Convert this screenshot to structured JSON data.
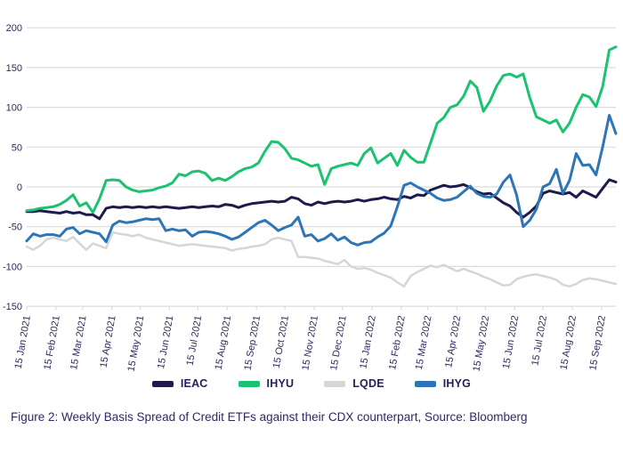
{
  "figure": {
    "caption": "Figure 2: Weekly Basis Spread of Credit ETFs against their CDX counterpart, Source: Bloomberg"
  },
  "legend": {
    "items": [
      {
        "label": "IEAC",
        "color": "#1c1b4b"
      },
      {
        "label": "IHYU",
        "color": "#1ac36f"
      },
      {
        "label": "LQDE",
        "color": "#d6d6d6"
      },
      {
        "label": "IHYG",
        "color": "#2e75b6"
      }
    ]
  },
  "colors": {
    "grid": "#dcdcdc",
    "axis_text": "#2d2a62",
    "background": "#ffffff"
  },
  "chart_data": {
    "type": "line",
    "title": "",
    "xlabel": "",
    "ylabel": "",
    "x_start": "15 Jan 2021",
    "x_end": "30 Sep 2022",
    "x_interval": "weekly",
    "ylim": [
      -150,
      200
    ],
    "yticks": [
      200,
      150,
      100,
      50,
      0,
      -50,
      -100,
      -150
    ],
    "grid": "horizontal",
    "legend_position": "bottom-center",
    "xticks": [
      {
        "label": "15 Jan 2021",
        "week": 0
      },
      {
        "label": "15 Feb 2021",
        "week": 4.43
      },
      {
        "label": "15 Mar 2021",
        "week": 8.43
      },
      {
        "label": "15 Apr 2021",
        "week": 12.86
      },
      {
        "label": "15 May 2021",
        "week": 17.14
      },
      {
        "label": "15 Jun 2021",
        "week": 21.57
      },
      {
        "label": "15 Jul 2021",
        "week": 25.86
      },
      {
        "label": "15 Aug 2021",
        "week": 30.29
      },
      {
        "label": "15 Sep 2021",
        "week": 34.71
      },
      {
        "label": "15 Oct 2021",
        "week": 39.0
      },
      {
        "label": "15 Nov 2021",
        "week": 43.43
      },
      {
        "label": "15 Dec 2021",
        "week": 47.71
      },
      {
        "label": "15 Jan 2022",
        "week": 52.14
      },
      {
        "label": "15 Feb 2022",
        "week": 56.57
      },
      {
        "label": "15 Mar 2022",
        "week": 60.57
      },
      {
        "label": "15 Apr 2022",
        "week": 65.0
      },
      {
        "label": "15 May 2022",
        "week": 69.29
      },
      {
        "label": "15 Jun 2022",
        "week": 73.71
      },
      {
        "label": "15 Jul 2022",
        "week": 78.0
      },
      {
        "label": "15 Aug 2022",
        "week": 82.43
      },
      {
        "label": "15 Sep 2022",
        "week": 86.86
      }
    ],
    "draw_order": [
      "LQDE",
      "IEAC",
      "IHYU",
      "IHYG"
    ],
    "series": [
      {
        "name": "IEAC",
        "color": "#1c1b4b",
        "width": 3,
        "values": [
          -31,
          -31,
          -30,
          -31,
          -32,
          -33,
          -31,
          -33,
          -32,
          -35,
          -35,
          -40,
          -27,
          -25,
          -26,
          -25,
          -26,
          -25,
          -26,
          -25,
          -26,
          -25,
          -26,
          -27,
          -26,
          -25,
          -26,
          -25,
          -24,
          -25,
          -22,
          -23,
          -26,
          -23,
          -21,
          -20,
          -19,
          -18,
          -19,
          -18,
          -13,
          -15,
          -21,
          -23,
          -19,
          -21,
          -19,
          -18,
          -19,
          -18,
          -16,
          -18,
          -16,
          -15,
          -13,
          -15,
          -16,
          -12,
          -14,
          -10,
          -11,
          -4,
          -1,
          2,
          0,
          1,
          3,
          -1,
          -6,
          -9,
          -8,
          -14,
          -20,
          -24,
          -32,
          -38,
          -32,
          -24,
          -8,
          -5,
          -7,
          -9,
          -7,
          -13,
          -5,
          -9,
          -13,
          -2,
          9,
          6
        ]
      },
      {
        "name": "IHYU",
        "color": "#1ac36f",
        "width": 3,
        "values": [
          -30,
          -29,
          -27,
          -26,
          -25,
          -22,
          -17,
          -10,
          -24,
          -20,
          -32,
          -15,
          8,
          9,
          8,
          0,
          -4,
          -6,
          -5,
          -4,
          -1,
          1,
          5,
          16,
          14,
          19,
          20,
          17,
          8,
          11,
          8,
          13,
          19,
          23,
          25,
          30,
          45,
          57,
          56,
          48,
          36,
          34,
          30,
          26,
          28,
          3,
          23,
          26,
          28,
          30,
          27,
          42,
          49,
          30,
          36,
          42,
          27,
          46,
          37,
          31,
          31,
          55,
          80,
          87,
          100,
          103,
          114,
          133,
          125,
          95,
          108,
          127,
          140,
          142,
          138,
          142,
          112,
          88,
          84,
          80,
          84,
          69,
          80,
          100,
          116,
          113,
          101,
          126,
          172,
          176
        ]
      },
      {
        "name": "LQDE",
        "color": "#d6d6d6",
        "width": 2.5,
        "values": [
          -75,
          -79,
          -74,
          -66,
          -64,
          -66,
          -68,
          -63,
          -71,
          -79,
          -71,
          -74,
          -77,
          -57,
          -59,
          -60,
          -62,
          -60,
          -64,
          -66,
          -68,
          -70,
          -72,
          -74,
          -73,
          -72,
          -73,
          -74,
          -75,
          -76,
          -77,
          -80,
          -78,
          -77,
          -75,
          -74,
          -72,
          -66,
          -64,
          -66,
          -68,
          -88,
          -88,
          -89,
          -90,
          -93,
          -95,
          -97,
          -92,
          -100,
          -103,
          -102,
          -104,
          -108,
          -111,
          -114,
          -120,
          -125,
          -112,
          -107,
          -103,
          -99,
          -101,
          -98,
          -102,
          -106,
          -103,
          -106,
          -109,
          -113,
          -116,
          -120,
          -124,
          -123,
          -116,
          -113,
          -111,
          -110,
          -112,
          -114,
          -117,
          -123,
          -125,
          -122,
          -117,
          -115,
          -116,
          -118,
          -120,
          -122
        ]
      },
      {
        "name": "IHYG",
        "color": "#2e75b6",
        "width": 3,
        "values": [
          -68,
          -59,
          -62,
          -60,
          -60,
          -62,
          -53,
          -51,
          -59,
          -55,
          -57,
          -59,
          -69,
          -48,
          -43,
          -45,
          -44,
          -42,
          -40,
          -41,
          -40,
          -55,
          -53,
          -55,
          -54,
          -62,
          -57,
          -56,
          -57,
          -59,
          -62,
          -66,
          -63,
          -57,
          -51,
          -45,
          -42,
          -48,
          -55,
          -51,
          -48,
          -38,
          -62,
          -60,
          -68,
          -65,
          -59,
          -67,
          -63,
          -70,
          -73,
          -70,
          -69,
          -63,
          -58,
          -49,
          -25,
          2,
          5,
          0,
          -4,
          -8,
          -14,
          -17,
          -16,
          -13,
          -6,
          1,
          -8,
          -12,
          -13,
          -9,
          6,
          15,
          -10,
          -50,
          -42,
          -28,
          0,
          4,
          22,
          -8,
          8,
          42,
          27,
          28,
          15,
          50,
          90,
          67
        ]
      }
    ]
  }
}
